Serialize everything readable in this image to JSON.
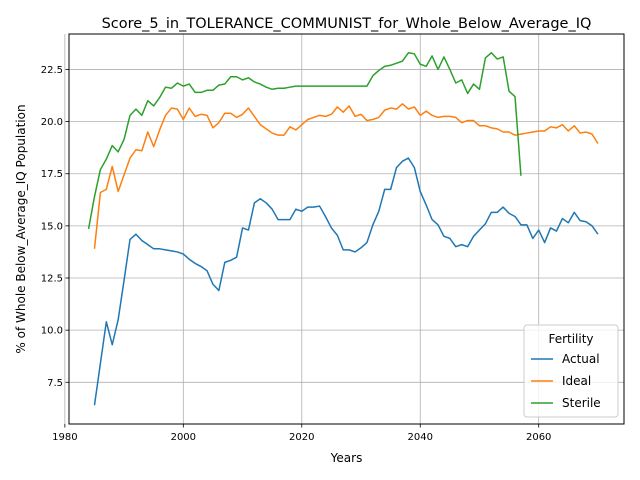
{
  "chart_data": {
    "type": "line",
    "title": "Score_5_in_TOLERANCE_COMMUNIST_for_Whole_Below_Average_IQ",
    "xlabel": "Years",
    "ylabel": "% of Whole Below_Average_IQ Population",
    "xlim": [
      1980.7,
      2074.4
    ],
    "ylim": [
      5.5,
      24.2
    ],
    "xticks": [
      1980,
      2000,
      2020,
      2040,
      2060
    ],
    "yticks": [
      7.5,
      10.0,
      12.5,
      15.0,
      17.5,
      20.0,
      22.5
    ],
    "xtick_labels": [
      "1980",
      "2000",
      "2020",
      "2040",
      "2060"
    ],
    "ytick_labels": [
      "7.5",
      "10.0",
      "12.5",
      "15.0",
      "17.5",
      "20.0",
      "22.5"
    ],
    "grid": true,
    "legend": {
      "title": "Fertility",
      "placement": "lower right"
    },
    "series": [
      {
        "name": "Actual",
        "color": "#1f77b4",
        "x": [
          1985,
          1986,
          1987,
          1988,
          1989,
          1990,
          1991,
          1992,
          1993,
          1994,
          1995,
          1996,
          1997,
          1998,
          1999,
          2000,
          2001,
          2002,
          2003,
          2004,
          2005,
          2006,
          2007,
          2008,
          2009,
          2010,
          2011,
          2012,
          2013,
          2014,
          2015,
          2016,
          2017,
          2018,
          2019,
          2020,
          2021,
          2022,
          2023,
          2024,
          2025,
          2026,
          2027,
          2028,
          2029,
          2030,
          2031,
          2032,
          2033,
          2034,
          2035,
          2036,
          2037,
          2038,
          2039,
          2040,
          2041,
          2042,
          2043,
          2044,
          2045,
          2046,
          2047,
          2048,
          2049,
          2050,
          2051,
          2052,
          2053,
          2054,
          2055,
          2056,
          2057,
          2058,
          2059,
          2060,
          2061,
          2062,
          2063,
          2064,
          2065,
          2066,
          2067,
          2068,
          2069,
          2070
        ],
        "y": [
          6.4,
          8.4,
          10.4,
          9.3,
          10.5,
          12.4,
          14.35,
          14.6,
          14.3,
          14.1,
          13.9,
          13.9,
          13.85,
          13.8,
          13.75,
          13.65,
          13.4,
          13.2,
          13.05,
          12.85,
          12.2,
          11.9,
          13.25,
          13.35,
          13.5,
          14.9,
          14.8,
          16.1,
          16.3,
          16.1,
          15.8,
          15.3,
          15.3,
          15.3,
          15.8,
          15.7,
          15.9,
          15.9,
          15.95,
          15.45,
          14.9,
          14.55,
          13.85,
          13.85,
          13.75,
          13.95,
          14.2,
          15.05,
          15.7,
          16.75,
          16.75,
          17.8,
          18.1,
          18.25,
          17.8,
          16.65,
          16.0,
          15.3,
          15.05,
          14.5,
          14.4,
          14.0,
          14.1,
          14.0,
          14.5,
          14.8,
          15.1,
          15.65,
          15.65,
          15.9,
          15.6,
          15.45,
          15.05,
          15.05,
          14.4,
          14.8,
          14.2,
          14.9,
          14.75,
          15.35,
          15.15,
          15.65,
          15.25,
          15.2,
          15.0,
          14.6
        ]
      },
      {
        "name": "Ideal",
        "color": "#ff7f0e",
        "x": [
          1985,
          1986,
          1987,
          1988,
          1989,
          1990,
          1991,
          1992,
          1993,
          1994,
          1995,
          1996,
          1997,
          1998,
          1999,
          2000,
          2001,
          2002,
          2003,
          2004,
          2005,
          2006,
          2007,
          2008,
          2009,
          2010,
          2011,
          2012,
          2013,
          2014,
          2015,
          2016,
          2017,
          2018,
          2019,
          2020,
          2021,
          2022,
          2023,
          2024,
          2025,
          2026,
          2027,
          2028,
          2029,
          2030,
          2031,
          2032,
          2033,
          2034,
          2035,
          2036,
          2037,
          2038,
          2039,
          2040,
          2041,
          2042,
          2043,
          2044,
          2045,
          2046,
          2047,
          2048,
          2049,
          2050,
          2051,
          2052,
          2053,
          2054,
          2055,
          2056,
          2057,
          2058,
          2059,
          2060,
          2061,
          2062,
          2063,
          2064,
          2065,
          2066,
          2067,
          2068,
          2069,
          2070
        ],
        "y": [
          13.9,
          16.6,
          16.75,
          17.85,
          16.65,
          17.45,
          18.25,
          18.65,
          18.6,
          19.5,
          18.8,
          19.6,
          20.3,
          20.65,
          20.6,
          20.1,
          20.65,
          20.25,
          20.35,
          20.3,
          19.7,
          19.95,
          20.4,
          20.4,
          20.2,
          20.35,
          20.65,
          20.25,
          19.85,
          19.65,
          19.45,
          19.35,
          19.35,
          19.75,
          19.6,
          19.85,
          20.1,
          20.2,
          20.3,
          20.25,
          20.35,
          20.7,
          20.45,
          20.75,
          20.25,
          20.35,
          20.05,
          20.1,
          20.2,
          20.55,
          20.65,
          20.6,
          20.85,
          20.6,
          20.7,
          20.3,
          20.5,
          20.3,
          20.2,
          20.25,
          20.25,
          20.2,
          19.95,
          20.05,
          20.05,
          19.8,
          19.8,
          19.7,
          19.65,
          19.5,
          19.5,
          19.35,
          19.4,
          19.45,
          19.5,
          19.55,
          19.55,
          19.75,
          19.7,
          19.85,
          19.55,
          19.8,
          19.45,
          19.5,
          19.4,
          18.95
        ]
      },
      {
        "name": "Sterile",
        "color": "#2ca02c",
        "x": [
          1984,
          1985,
          1986,
          1987,
          1988,
          1989,
          1990,
          1991,
          1992,
          1993,
          1994,
          1995,
          1996,
          1997,
          1998,
          1999,
          2000,
          2001,
          2002,
          2003,
          2004,
          2005,
          2006,
          2007,
          2008,
          2009,
          2010,
          2011,
          2012,
          2013,
          2014,
          2015,
          2016,
          2017,
          2018,
          2019,
          2020,
          2021,
          2022,
          2023,
          2024,
          2025,
          2026,
          2027,
          2028,
          2029,
          2030,
          2031,
          2032,
          2033,
          2034,
          2035,
          2036,
          2037,
          2038,
          2039,
          2040,
          2041,
          2042,
          2043,
          2044,
          2045,
          2046,
          2047,
          2048,
          2049,
          2050,
          2051,
          2052,
          2053,
          2054,
          2055,
          2056,
          2057
        ],
        "y": [
          14.85,
          16.4,
          17.7,
          18.2,
          18.85,
          18.55,
          19.15,
          20.3,
          20.6,
          20.3,
          21.0,
          20.75,
          21.15,
          21.65,
          21.6,
          21.85,
          21.7,
          21.8,
          21.4,
          21.4,
          21.5,
          21.5,
          21.75,
          21.8,
          22.15,
          22.15,
          22.0,
          22.1,
          21.9,
          21.8,
          21.65,
          21.55,
          21.6,
          21.6,
          21.65,
          21.7,
          21.7,
          21.7,
          21.7,
          21.7,
          21.7,
          21.7,
          21.7,
          21.7,
          21.7,
          21.7,
          21.7,
          21.7,
          22.2,
          22.45,
          22.65,
          22.7,
          22.8,
          22.9,
          23.3,
          23.25,
          22.75,
          22.65,
          23.15,
          22.5,
          23.1,
          22.5,
          21.85,
          22.0,
          21.35,
          21.8,
          21.55,
          23.05,
          23.3,
          23.0,
          23.1,
          21.45,
          21.2,
          17.4
        ]
      }
    ]
  }
}
